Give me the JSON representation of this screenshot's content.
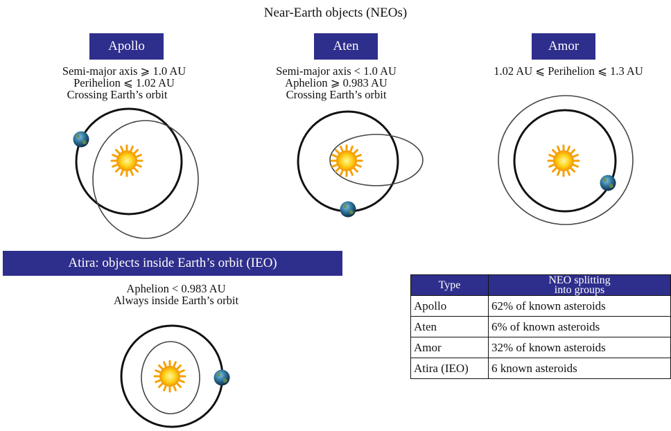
{
  "title": "Near-Earth objects (NEOs)",
  "groups": {
    "apollo": {
      "name": "Apollo",
      "lines": [
        "Semi-major axis  ⩾ 1.0 AU",
        "Perihelion  ⩽ 1.02 AU",
        "Crossing Earth’s orbit"
      ]
    },
    "aten": {
      "name": "Aten",
      "lines": [
        "Semi-major axis < 1.0 AU",
        "Aphelion  ⩾ 0.983 AU",
        "Crossing Earth’s orbit"
      ]
    },
    "amor": {
      "name": "Amor",
      "lines": [
        "1.02 AU  ⩽  Perihelion  ⩽ 1.3 AU"
      ]
    },
    "atira": {
      "name": "Atira: objects inside Earth’s orbit (IEO)",
      "lines": [
        "Aphelion  < 0.983 AU",
        "Always inside Earth’s orbit"
      ]
    }
  },
  "table": {
    "header_type": "Type",
    "header_split_line1": "NEO splitting",
    "header_split_line2": "into groups",
    "rows": [
      {
        "type": "Apollo",
        "share": "62% of known asteroids"
      },
      {
        "type": "Aten",
        "share": "6% of known asteroids"
      },
      {
        "type": "Amor",
        "share": "32% of known asteroids"
      },
      {
        "type": "Atira (IEO)",
        "share": "6 known asteroids"
      }
    ]
  },
  "colors": {
    "header_box": "#2e2e8c",
    "sun": "#f6a800",
    "earth": "#1f5f86"
  }
}
